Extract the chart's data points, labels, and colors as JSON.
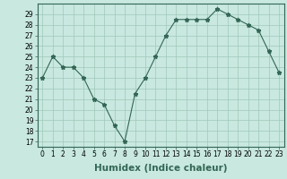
{
  "x": [
    0,
    1,
    2,
    3,
    4,
    5,
    6,
    7,
    8,
    9,
    10,
    11,
    12,
    13,
    14,
    15,
    16,
    17,
    18,
    19,
    20,
    21,
    22,
    23
  ],
  "y": [
    23,
    25,
    24,
    24,
    23,
    21,
    20.5,
    18.5,
    17,
    21.5,
    23,
    25,
    27,
    28.5,
    28.5,
    28.5,
    28.5,
    29.5,
    29,
    28.5,
    28,
    27.5,
    25.5,
    23.5
  ],
  "line_color": "#336655",
  "marker": "*",
  "marker_size": 3.5,
  "bg_color": "#c8e8e0",
  "grid_color": "#a0c8b8",
  "xlabel": "Humidex (Indice chaleur)",
  "ymin": 16.5,
  "ymax": 30.0,
  "xmin": -0.5,
  "xmax": 23.5,
  "yticks": [
    17,
    18,
    19,
    20,
    21,
    22,
    23,
    24,
    25,
    26,
    27,
    28,
    29
  ],
  "xticks": [
    0,
    1,
    2,
    3,
    4,
    5,
    6,
    7,
    8,
    9,
    10,
    11,
    12,
    13,
    14,
    15,
    16,
    17,
    18,
    19,
    20,
    21,
    22,
    23
  ],
  "tick_fontsize": 5.5,
  "label_fontsize": 7.5
}
